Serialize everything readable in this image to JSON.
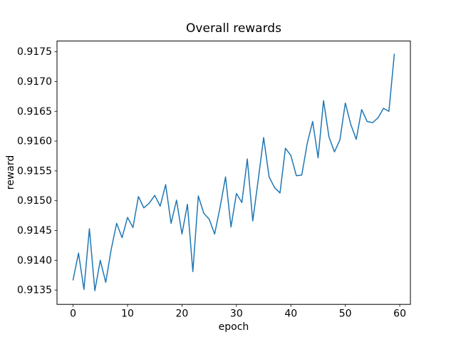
{
  "figure": {
    "background": "#ffffff",
    "text_color": "#000000"
  },
  "chart_data": {
    "type": "line",
    "title": "Overall rewards",
    "xlabel": "epoch",
    "ylabel": "reward",
    "line_color": "#1f77b4",
    "line_width": 1.5,
    "grid": false,
    "legend": null,
    "xlim": [
      -2.95,
      61.95
    ],
    "ylim": [
      0.91326,
      0.91768
    ],
    "xtick_values": [
      0,
      10,
      20,
      30,
      40,
      50,
      60
    ],
    "xtick_labels": [
      "0",
      "10",
      "20",
      "30",
      "40",
      "50",
      "60"
    ],
    "ytick_values": [
      0.9135,
      0.914,
      0.9145,
      0.915,
      0.9155,
      0.916,
      0.9165,
      0.917,
      0.9175
    ],
    "ytick_labels": [
      "0.9135",
      "0.9140",
      "0.9145",
      "0.9150",
      "0.9155",
      "0.9160",
      "0.9165",
      "0.9170",
      "0.9175"
    ],
    "x": [
      0,
      1,
      2,
      3,
      4,
      5,
      6,
      7,
      8,
      9,
      10,
      11,
      12,
      13,
      14,
      15,
      16,
      17,
      18,
      19,
      20,
      21,
      22,
      23,
      24,
      25,
      26,
      27,
      28,
      29,
      30,
      31,
      32,
      33,
      34,
      35,
      36,
      37,
      38,
      39,
      40,
      41,
      42,
      43,
      44,
      45,
      46,
      47,
      48,
      49,
      50,
      51,
      52,
      53,
      54,
      55,
      56,
      57,
      58,
      59
    ],
    "values": [
      0.91367,
      0.91412,
      0.91351,
      0.91453,
      0.91349,
      0.914,
      0.91363,
      0.91418,
      0.91462,
      0.91438,
      0.91472,
      0.91455,
      0.91507,
      0.91488,
      0.91496,
      0.91509,
      0.91491,
      0.91527,
      0.91462,
      0.91501,
      0.91444,
      0.91494,
      0.91381,
      0.91508,
      0.91479,
      0.91469,
      0.91444,
      0.91489,
      0.9154,
      0.91456,
      0.91512,
      0.91497,
      0.9157,
      0.91466,
      0.91535,
      0.91606,
      0.9154,
      0.91522,
      0.91513,
      0.91588,
      0.91576,
      0.91542,
      0.91543,
      0.91596,
      0.91633,
      0.91572,
      0.91668,
      0.91607,
      0.91582,
      0.91602,
      0.91664,
      0.91628,
      0.91603,
      0.91653,
      0.91633,
      0.91631,
      0.91639,
      0.91655,
      0.9165,
      0.91746
    ]
  }
}
